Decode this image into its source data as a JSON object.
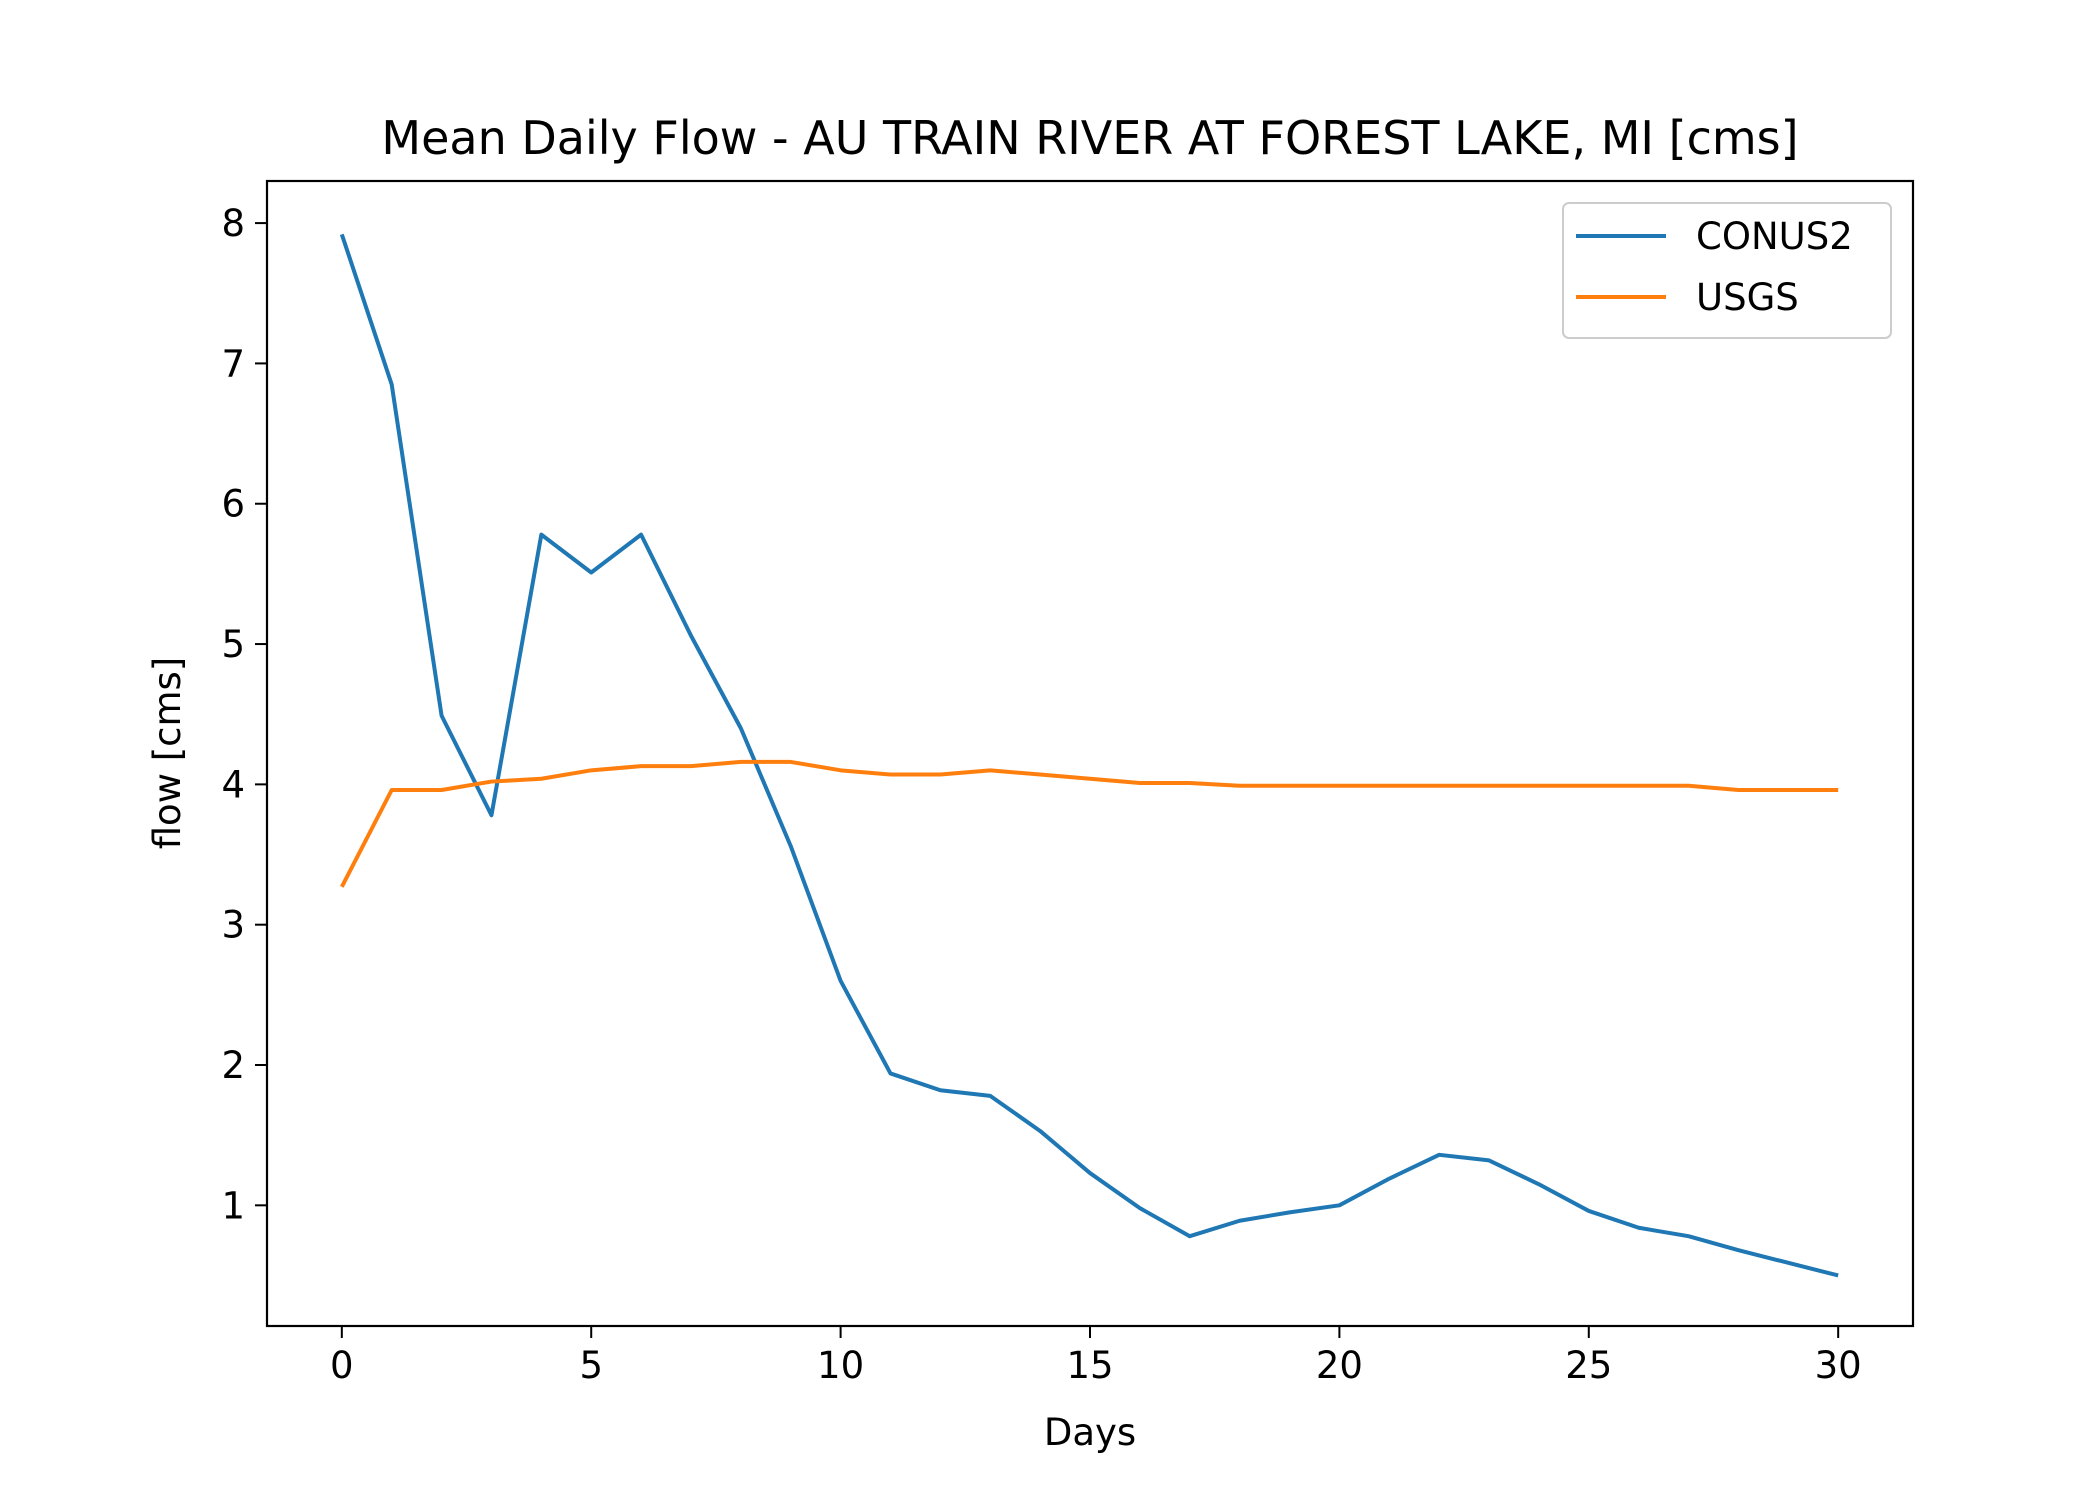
{
  "chart_data": {
    "type": "line",
    "title": "Mean Daily Flow - AU TRAIN RIVER AT FOREST LAKE, MI [cms]",
    "xlabel": "Days",
    "ylabel": "flow [cms]",
    "xlim": [
      -1.5,
      31.5
    ],
    "ylim": [
      0.14,
      8.3
    ],
    "xticks": [
      0,
      5,
      10,
      15,
      20,
      25,
      30
    ],
    "xtick_labels": [
      "0",
      "5",
      "10",
      "15",
      "20",
      "25",
      "30"
    ],
    "yticks": [
      1,
      2,
      3,
      4,
      5,
      6,
      7,
      8
    ],
    "ytick_labels": [
      "1",
      "2",
      "3",
      "4",
      "5",
      "6",
      "7",
      "8"
    ],
    "grid": false,
    "legend_position": "top-right",
    "x": [
      0,
      1,
      2,
      3,
      4,
      5,
      6,
      7,
      8,
      9,
      10,
      11,
      12,
      13,
      14,
      15,
      16,
      17,
      18,
      19,
      20,
      21,
      22,
      23,
      24,
      25,
      26,
      27,
      28,
      29,
      30
    ],
    "series": [
      {
        "name": "CONUS2",
        "color": "#1f77b4",
        "values": [
          7.92,
          6.85,
          4.49,
          3.78,
          5.78,
          5.51,
          5.78,
          5.06,
          4.4,
          3.56,
          2.6,
          1.94,
          1.82,
          1.78,
          1.53,
          1.23,
          0.98,
          0.78,
          0.89,
          0.95,
          1.0,
          1.19,
          1.36,
          1.32,
          1.15,
          0.96,
          0.84,
          0.78,
          0.68,
          0.59,
          0.5
        ]
      },
      {
        "name": "USGS",
        "color": "#ff7f0e",
        "values": [
          3.27,
          3.96,
          3.96,
          4.02,
          4.04,
          4.1,
          4.13,
          4.13,
          4.16,
          4.16,
          4.1,
          4.07,
          4.07,
          4.1,
          4.07,
          4.04,
          4.01,
          4.01,
          3.99,
          3.99,
          3.99,
          3.99,
          3.99,
          3.99,
          3.99,
          3.99,
          3.99,
          3.99,
          3.96,
          3.96,
          3.96
        ]
      }
    ]
  }
}
